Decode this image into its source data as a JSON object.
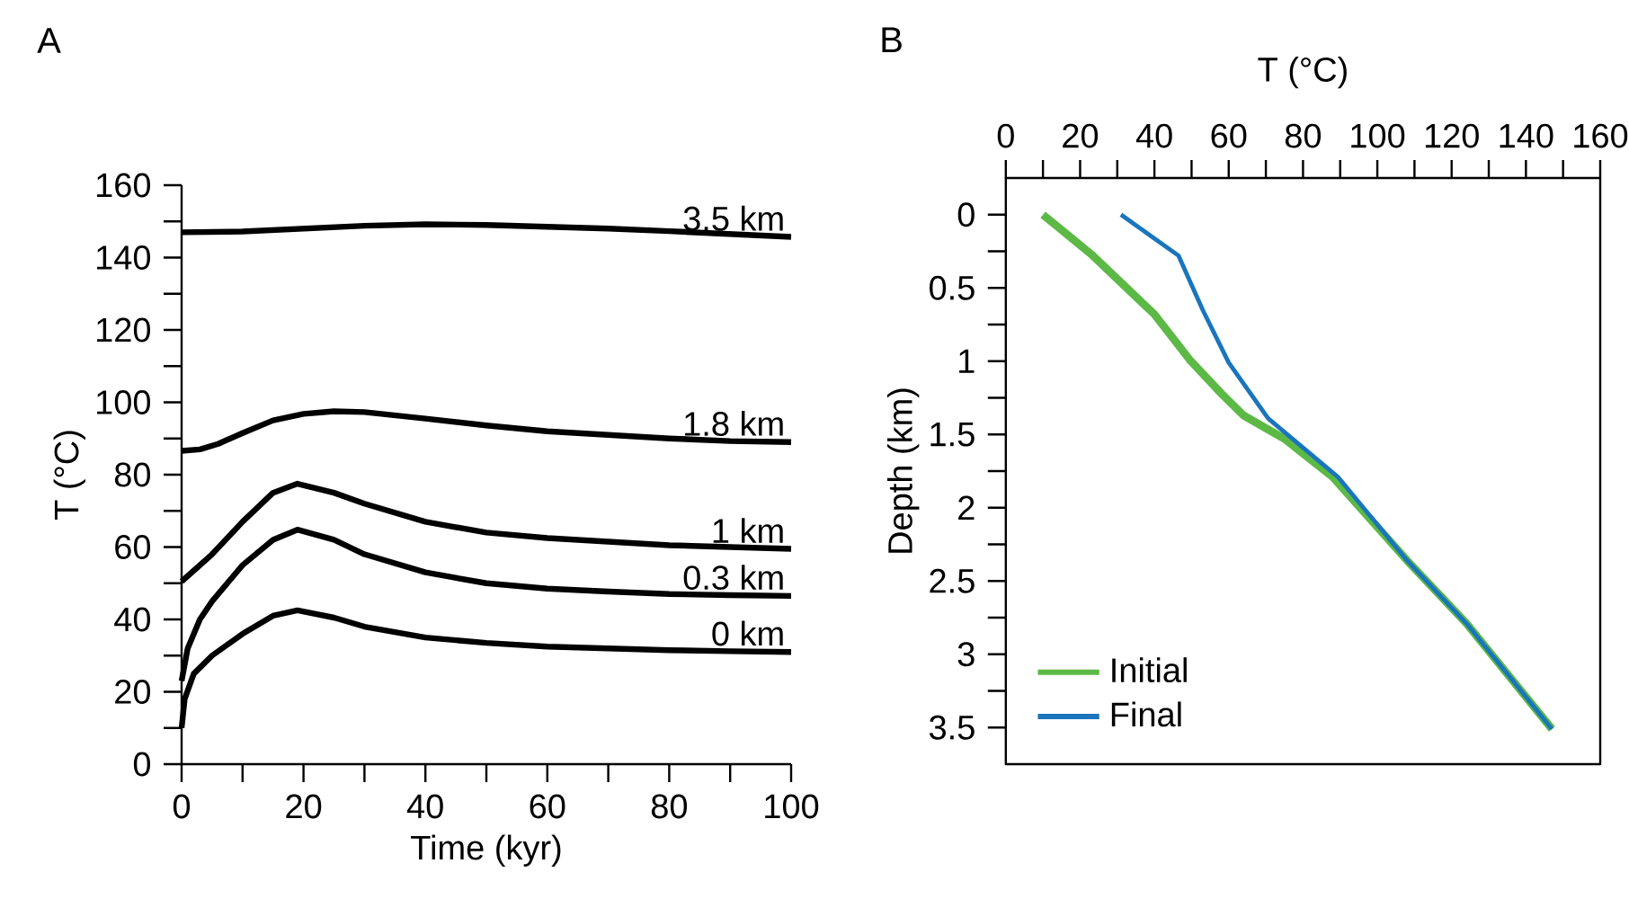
{
  "chart_data": [
    {
      "type": "line",
      "title": "A",
      "xlabel": "Time (kyr)",
      "ylabel": "T (°C)",
      "xlim": [
        0,
        100
      ],
      "ylim": [
        0,
        160
      ],
      "xticks": [
        0,
        {
          "value": 10,
          "label": null
        },
        20,
        {
          "value": 30,
          "label": null
        },
        40,
        {
          "value": 50,
          "label": null
        },
        60,
        {
          "value": 70,
          "label": null
        },
        80,
        {
          "value": 90,
          "label": null
        },
        100
      ],
      "yticks": [
        0,
        {
          "value": 10,
          "label": null
        },
        20,
        {
          "value": 30,
          "label": null
        },
        40,
        {
          "value": 50,
          "label": null
        },
        60,
        {
          "value": 70,
          "label": null
        },
        80,
        {
          "value": 90,
          "label": null
        },
        100,
        {
          "value": 110,
          "label": null
        },
        120,
        {
          "value": 130,
          "label": null
        },
        140,
        {
          "value": 150,
          "label": null
        },
        160
      ],
      "series": [
        {
          "name": "3.5 km",
          "color": "#000000",
          "x": [
            0,
            10,
            20,
            30,
            40,
            50,
            60,
            70,
            80,
            90,
            100
          ],
          "values": [
            147,
            147.2,
            148,
            148.8,
            149.2,
            149,
            148.5,
            148,
            147.3,
            146.5,
            145.7
          ]
        },
        {
          "name": "1.8 km",
          "color": "#000000",
          "x": [
            0,
            3,
            6,
            10,
            15,
            20,
            25,
            30,
            40,
            50,
            60,
            70,
            80,
            90,
            100
          ],
          "values": [
            86.6,
            87,
            88.5,
            91.5,
            95,
            96.8,
            97.5,
            97.3,
            95.5,
            93.6,
            92,
            91,
            90,
            89.3,
            89
          ]
        },
        {
          "name": "1 km",
          "color": "#000000",
          "x": [
            0,
            5,
            10,
            15,
            19,
            25,
            30,
            40,
            50,
            60,
            70,
            80,
            90,
            100
          ],
          "values": [
            50.5,
            58,
            67,
            75,
            77.5,
            75,
            72,
            67,
            64,
            62.5,
            61.5,
            60.5,
            60,
            59.5
          ]
        },
        {
          "name": "0.3 km",
          "color": "#000000",
          "x": [
            0,
            1,
            3,
            5,
            10,
            15,
            19,
            25,
            30,
            40,
            50,
            60,
            70,
            80,
            90,
            100
          ],
          "values": [
            23,
            32,
            40,
            45,
            55,
            62,
            64.8,
            62,
            58,
            53,
            50,
            48.5,
            47.7,
            47,
            46.7,
            46.5
          ]
        },
        {
          "name": "0 km",
          "color": "#000000",
          "x": [
            0,
            0.5,
            2,
            5,
            10,
            15,
            19,
            25,
            30,
            40,
            50,
            60,
            70,
            80,
            90,
            100
          ],
          "values": [
            10,
            18,
            25,
            30,
            36,
            41,
            42.5,
            40.5,
            38,
            35,
            33.5,
            32.5,
            32,
            31.5,
            31.2,
            31
          ]
        }
      ]
    },
    {
      "type": "line",
      "title": "B",
      "xlabel": "T (°C)",
      "ylabel": "Depth (km)",
      "xlim": [
        0,
        160
      ],
      "ylim": [
        3.75,
        -0.25
      ],
      "legend": "bottom left",
      "xticks": [
        0,
        {
          "value": 10,
          "label": null
        },
        20,
        {
          "value": 30,
          "label": null
        },
        40,
        {
          "value": 50,
          "label": null
        },
        60,
        {
          "value": 70,
          "label": null
        },
        80,
        {
          "value": 90,
          "label": null
        },
        100,
        {
          "value": 110,
          "label": null
        },
        120,
        {
          "value": 130,
          "label": null
        },
        140,
        {
          "value": 150,
          "label": null
        },
        160
      ],
      "yticks": [
        0,
        {
          "value": 0.25,
          "label": null
        },
        0.5,
        {
          "value": 0.75,
          "label": null
        },
        1,
        {
          "value": 1.25,
          "label": null
        },
        1.5,
        {
          "value": 1.75,
          "label": null
        },
        2,
        {
          "value": 2.25,
          "label": null
        },
        2.5,
        {
          "value": 2.75,
          "label": null
        },
        3,
        {
          "value": 3.25,
          "label": null
        },
        3.5
      ],
      "series": [
        {
          "name": "Initial",
          "color": "#5cb946",
          "x": [
            10,
            23,
            40,
            49.5,
            58,
            64,
            75,
            88,
            108,
            124,
            147
          ],
          "values": [
            0,
            0.27,
            0.68,
            0.99,
            1.22,
            1.37,
            1.53,
            1.79,
            2.36,
            2.79,
            3.51
          ]
        },
        {
          "name": "Final",
          "color": "#1a75bc",
          "x": [
            31,
            46.5,
            53,
            60,
            70.6,
            89.4,
            108,
            124,
            147
          ],
          "values": [
            0,
            0.28,
            0.65,
            1.01,
            1.39,
            1.79,
            2.36,
            2.79,
            3.51
          ]
        }
      ]
    }
  ]
}
